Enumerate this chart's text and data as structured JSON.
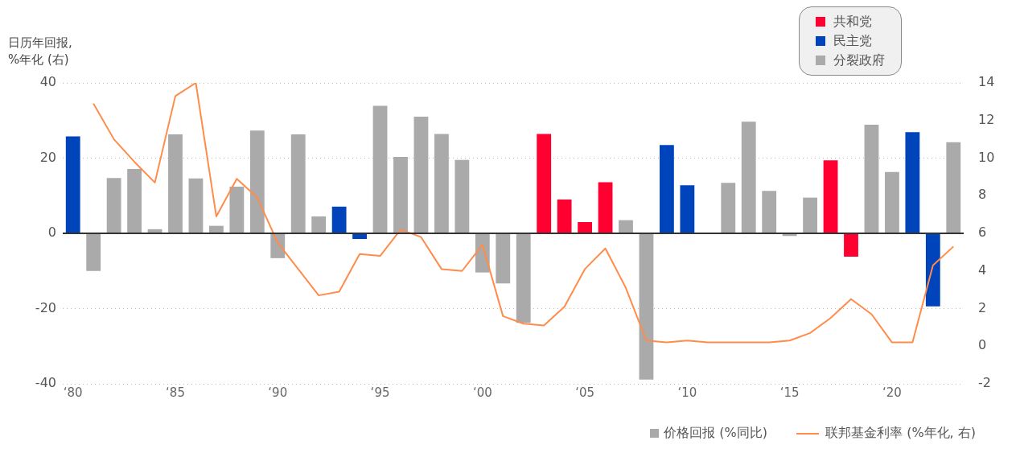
{
  "chart_data": {
    "type": "bar",
    "ylabel": "日历年回报, %年化 (右)",
    "categories": [
      "‘80",
      null,
      null,
      null,
      null,
      "‘85",
      null,
      null,
      null,
      null,
      "‘90",
      null,
      null,
      null,
      null,
      "‘95",
      null,
      null,
      null,
      null,
      "‘00",
      null,
      null,
      null,
      null,
      "‘05",
      null,
      null,
      null,
      null,
      "‘10",
      null,
      null,
      null,
      null,
      "‘15",
      null,
      null,
      null,
      null,
      "‘20",
      null,
      null,
      null
    ],
    "series": [
      {
        "name": "共和党",
        "color": "#ff0030",
        "values": [
          null,
          null,
          null,
          null,
          null,
          null,
          null,
          null,
          null,
          null,
          null,
          null,
          null,
          null,
          null,
          null,
          null,
          null,
          null,
          null,
          null,
          null,
          null,
          26.4,
          9.0,
          3.0,
          13.6,
          null,
          null,
          null,
          null,
          null,
          null,
          null,
          null,
          null,
          null,
          19.4,
          -6.2,
          null,
          null,
          null,
          null,
          null
        ]
      },
      {
        "name": "民主党",
        "color": "#0044bb",
        "values": [
          25.8,
          null,
          null,
          null,
          null,
          null,
          null,
          null,
          null,
          null,
          null,
          null,
          null,
          7.1,
          -1.5,
          null,
          null,
          null,
          null,
          null,
          null,
          null,
          null,
          null,
          null,
          null,
          null,
          null,
          null,
          23.5,
          12.8,
          null,
          null,
          null,
          null,
          null,
          null,
          null,
          null,
          null,
          null,
          26.9,
          -19.4,
          null
        ]
      },
      {
        "name": "分裂政府",
        "color": "#aaaaaa",
        "values": [
          null,
          -10.0,
          14.7,
          17.1,
          1.1,
          26.3,
          14.6,
          2.0,
          12.4,
          27.3,
          -6.6,
          26.3,
          4.5,
          null,
          null,
          33.9,
          20.3,
          31.0,
          26.4,
          19.5,
          -10.4,
          -13.3,
          -23.8,
          null,
          null,
          null,
          null,
          3.5,
          -38.9,
          null,
          null,
          0.0,
          13.4,
          29.7,
          11.3,
          -0.7,
          9.5,
          null,
          null,
          28.9,
          16.3,
          null,
          null,
          24.2
        ]
      },
      {
        "name": "联邦基金利率 (%年化, 右)",
        "type": "line",
        "axis": "y2",
        "color": "#ff8c4a",
        "values": [
          null,
          12.9,
          11.0,
          9.8,
          8.7,
          13.3,
          14.0,
          6.9,
          8.9,
          7.9,
          5.5,
          4.1,
          2.7,
          2.9,
          4.9,
          4.8,
          6.2,
          5.8,
          4.1,
          4.0,
          5.4,
          1.6,
          1.2,
          1.1,
          2.1,
          4.1,
          5.2,
          3.1,
          0.3,
          0.2,
          0.3,
          0.2,
          0.2,
          0.2,
          0.2,
          0.3,
          0.7,
          1.5,
          2.5,
          1.7,
          0.2,
          0.2,
          4.3,
          5.3
        ]
      }
    ],
    "annotations": [
      "价格回报 (%同比)"
    ],
    "ylim": [
      -40,
      40
    ],
    "yticks": [
      -40,
      -20,
      0,
      20,
      40
    ],
    "y2lim": [
      -2,
      14
    ],
    "y2ticks": [
      -2,
      0,
      2,
      4,
      6,
      8,
      10,
      12,
      14
    ],
    "grid": "y",
    "legend": "top right",
    "marker": "none",
    "line_style": "solid"
  }
}
